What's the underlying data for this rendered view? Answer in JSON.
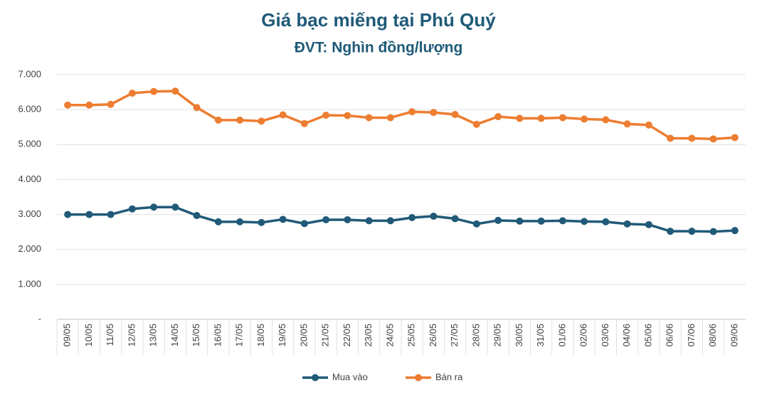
{
  "chart_data": {
    "type": "line",
    "title": "Giá bạc miếng tại Phú Quý",
    "subtitle": "ĐVT: Nghìn đồng/lượng",
    "categories": [
      "09/05",
      "10/05",
      "11/05",
      "12/05",
      "13/05",
      "14/05",
      "15/05",
      "16/05",
      "17/05",
      "18/05",
      "19/05",
      "20/05",
      "21/05",
      "22/05",
      "23/05",
      "24/05",
      "25/05",
      "26/05",
      "27/05",
      "28/05",
      "29/05",
      "30/05",
      "31/05",
      "01/06",
      "02/06",
      "03/06",
      "04/06",
      "05/06",
      "06/06",
      "07/06",
      "08/06",
      "09/06"
    ],
    "series": [
      {
        "name": "Mua vào",
        "color": "#215a78",
        "values": [
          3000,
          3000,
          3000,
          3160,
          3210,
          3210,
          2970,
          2790,
          2790,
          2770,
          2860,
          2740,
          2850,
          2850,
          2820,
          2820,
          2910,
          2950,
          2880,
          2730,
          2830,
          2810,
          2810,
          2820,
          2800,
          2790,
          2730,
          2710,
          2520,
          2520,
          2510,
          2540
        ]
      },
      {
        "name": "Bán ra",
        "color": "#ed7d31",
        "values": [
          6130,
          6130,
          6150,
          6470,
          6520,
          6530,
          6060,
          5700,
          5700,
          5670,
          5850,
          5600,
          5840,
          5830,
          5770,
          5770,
          5940,
          5920,
          5860,
          5580,
          5800,
          5750,
          5750,
          5770,
          5730,
          5710,
          5590,
          5560,
          5180,
          5180,
          5160,
          5200
        ]
      }
    ],
    "ylim": [
      0,
      7000
    ],
    "yticks": [
      {
        "value": 0,
        "label": "-"
      },
      {
        "value": 1000,
        "label": "1.000"
      },
      {
        "value": 2000,
        "label": "2.000"
      },
      {
        "value": 3000,
        "label": "3.000"
      },
      {
        "value": 4000,
        "label": "4.000"
      },
      {
        "value": 5000,
        "label": "5.000"
      },
      {
        "value": 6000,
        "label": "6.000"
      },
      {
        "value": 7000,
        "label": "7.000"
      }
    ],
    "grid": true,
    "legend": "bottom"
  }
}
